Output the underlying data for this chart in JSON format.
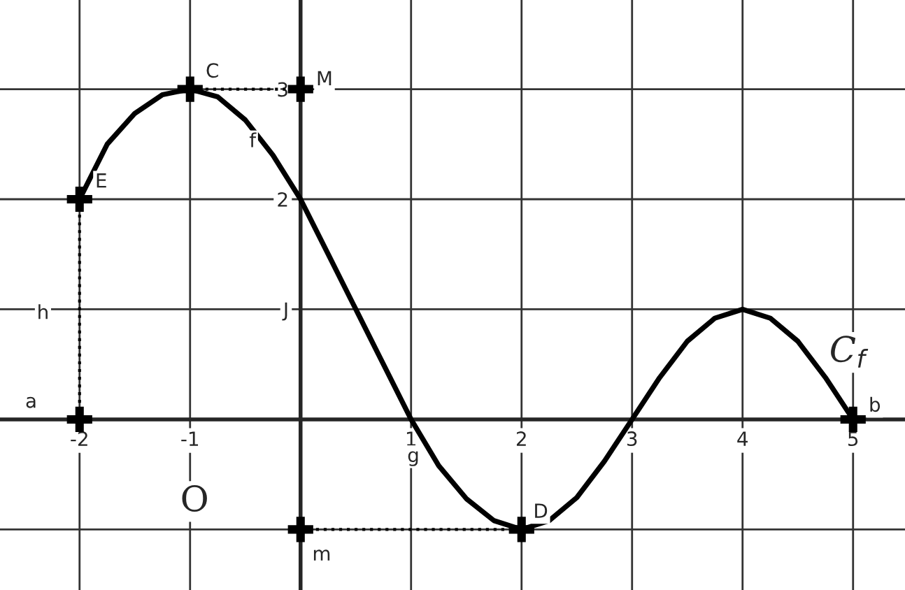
{
  "chart_data": {
    "type": "line",
    "xlim": [
      -2.72,
      5.47
    ],
    "ylim": [
      -1.55,
      3.81
    ],
    "xticks": [
      -2,
      -1,
      {
        "value": 0,
        "label": null
      },
      1,
      2,
      3,
      4,
      5
    ],
    "yticks": [
      {
        "value": -1,
        "label": null
      },
      {
        "value": 0,
        "label": null
      },
      {
        "value": 1,
        "label": "J"
      },
      2,
      3
    ],
    "grid": true,
    "series": [
      {
        "color": "#000000",
        "marker": "none",
        "line_style": "solid",
        "x": [
          -2,
          -1.75,
          -1.5,
          -1.25,
          -1,
          -0.75,
          -0.5,
          -0.25,
          0,
          0.25,
          0.5,
          0.75,
          1,
          1.25,
          1.5,
          1.75,
          2,
          2.25,
          2.5,
          2.75,
          3,
          3.25,
          3.5,
          3.75,
          4,
          4.25,
          4.5,
          4.75,
          5
        ],
        "values": [
          2,
          2.5,
          2.78,
          2.95,
          3,
          2.93,
          2.72,
          2.4,
          2,
          1.5,
          1,
          0.5,
          0,
          -0.42,
          -0.72,
          -0.92,
          -1,
          -0.92,
          -0.71,
          -0.38,
          0,
          0.38,
          0.71,
          0.92,
          1,
          0.92,
          0.71,
          0.38,
          0
        ]
      },
      {
        "type": "line",
        "color": "#000000",
        "marker": "none",
        "line_style": "dotted",
        "x": [
          -2,
          -2
        ],
        "values": [
          2,
          0
        ]
      },
      {
        "type": "line",
        "color": "#000000",
        "marker": "none",
        "line_style": "dotted",
        "x": [
          -1,
          0
        ],
        "values": [
          3,
          3
        ]
      },
      {
        "type": "line",
        "color": "#000000",
        "marker": "none",
        "line_style": "dotted",
        "x": [
          0,
          2
        ],
        "values": [
          -1,
          -1
        ]
      },
      {
        "type": "scatter",
        "color": "#000000",
        "marker": "cross",
        "x": [
          -2,
          -1,
          0,
          -2,
          2,
          0,
          5
        ],
        "values": [
          2,
          3,
          3,
          0,
          -1,
          -1,
          0
        ]
      }
    ],
    "annotations": [
      {
        "text": "C",
        "x": -1,
        "y": 3
      },
      {
        "text": "M",
        "x": 0,
        "y": 3
      },
      {
        "text": "f",
        "x": -0.5,
        "y": 2.72
      },
      {
        "text": "E",
        "x": -2,
        "y": 2
      },
      {
        "text": "h",
        "x": -2,
        "y": 1
      },
      {
        "text": "a",
        "x": -2,
        "y": 0
      },
      {
        "text": "b",
        "x": 5,
        "y": 0
      },
      {
        "text": "g",
        "x": 1,
        "y": 0
      },
      {
        "text": "D",
        "x": 2,
        "y": -1
      },
      {
        "text": "m",
        "x": 0,
        "y": -1
      },
      "O",
      {
        "text": "C$_{f}$",
        "x": 4.75,
        "y": 0.38
      }
    ]
  }
}
